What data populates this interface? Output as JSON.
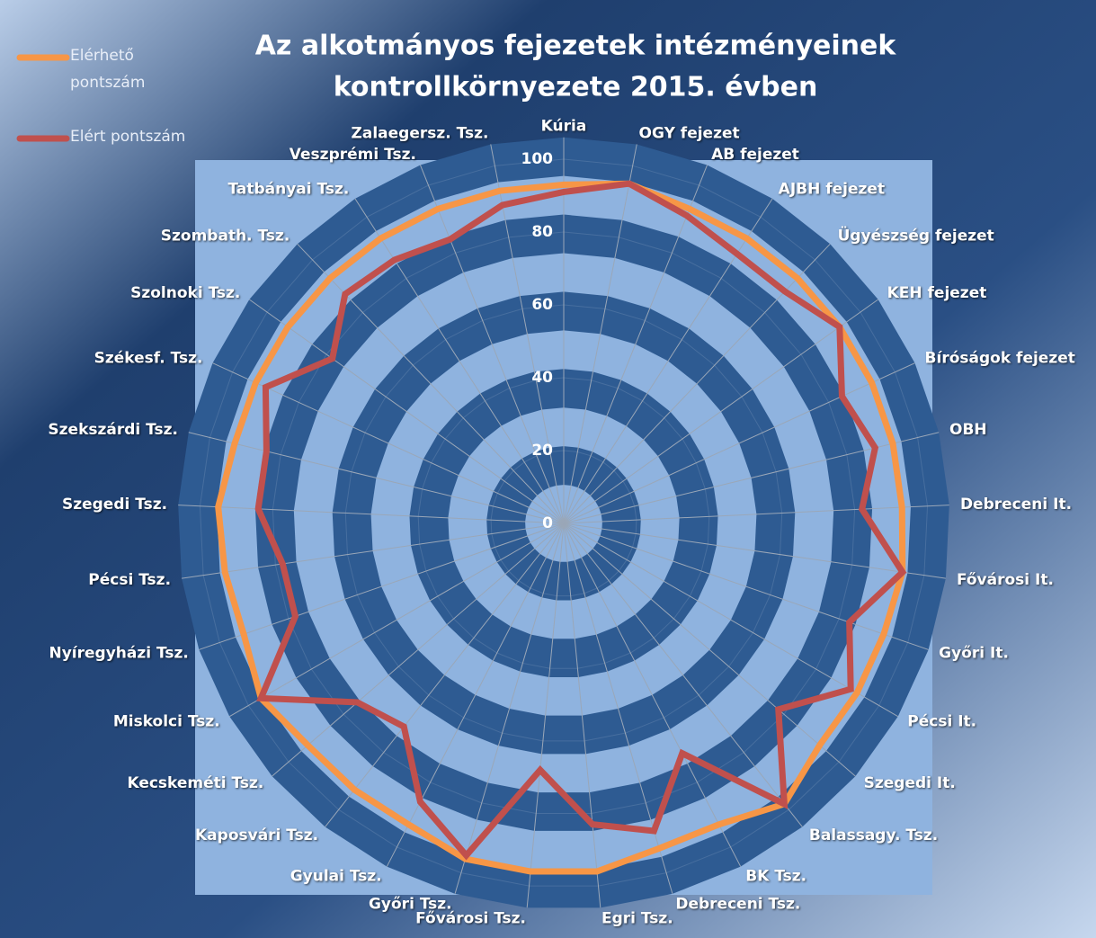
{
  "chart_data": {
    "type": "radar",
    "title": [
      "Az alkotmányos fejezetek intézményeinek",
      "kontrollkörnyezete 2015. évben"
    ],
    "categories": [
      "Kúria",
      "OGY fejezet",
      "AB fejezet",
      "AJBH fejezet",
      "Ügyészség fejezet",
      "KEH fejezet",
      "Bíróságok fejezet",
      "OBH",
      "Debreceni It.",
      "Fővárosi It.",
      "Győri It.",
      "Pécsi It.",
      "Szegedi It.",
      "Balassagy. Tsz.",
      "BK Tsz.",
      "Debreceni Tsz.",
      "Egri Tsz.",
      "Fővárosi Tsz.",
      "Győri Tsz.",
      "Gyulai Tsz.",
      "Kaposvári Tsz.",
      "Kecskeméti Tsz.",
      "Miskolci Tsz.",
      "Nyíregyházi Tsz.",
      "Pécsi Tsz.",
      "Szegedi Tsz.",
      "Szekszárdi Tsz.",
      "Székesf. Tsz.",
      "Szolnoki Tsz.",
      "Szombath. Tsz.",
      "Tatbányai Tsz.",
      "Veszprémi Tsz.",
      "Zalaegersz. Tsz."
    ],
    "series": [
      {
        "name": "Elérhető pontszám",
        "color": "#f79646",
        "values": [
          93,
          95,
          93,
          93,
          93,
          93,
          93,
          93,
          93,
          94,
          93,
          93,
          93,
          98,
          93,
          93,
          96,
          96,
          96,
          93,
          93,
          93,
          96,
          93,
          94,
          95,
          93,
          93,
          93,
          93,
          93,
          93,
          93
        ]
      },
      {
        "name": "Elért pontszám",
        "color": "#c0504d",
        "values": [
          91,
          95,
          91,
          88,
          88,
          93,
          84,
          88,
          82,
          94,
          83,
          91,
          78,
          98,
          71,
          88,
          83,
          68,
          95,
          86,
          71,
          75,
          96,
          78,
          78,
          84,
          84,
          90,
          78,
          87,
          86,
          84,
          89
        ]
      }
    ],
    "ylim": [
      0,
      100
    ],
    "yticks": [
      0,
      20,
      40,
      60,
      80,
      100
    ],
    "grid": true,
    "legend": "top-left"
  }
}
